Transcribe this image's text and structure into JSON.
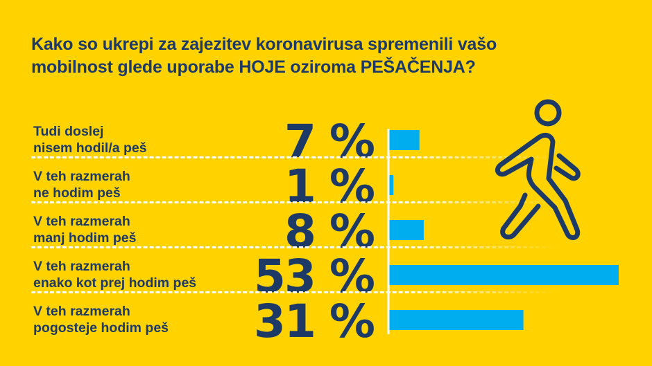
{
  "title_line1": "Kako so ukrepi za zajezitev koronavirusa spremenili vašo",
  "title_line2": "mobilnost glede uporabe HOJE oziroma PEŠAČENJA?",
  "colors": {
    "background": "#FFD200",
    "text": "#1D3A66",
    "bar": "#00AEEF",
    "divider": "#FFFFFF"
  },
  "icon": "walking-person-icon",
  "chart_data": {
    "type": "bar",
    "orientation": "horizontal",
    "title": "Kako so ukrepi za zajezitev koronavirusa spremenili vašo mobilnost glede uporabe HOJE oziroma PEŠAČENJA?",
    "categories": [
      [
        "Tudi doslej",
        "nisem hodil/a peš"
      ],
      [
        "V teh razmerah",
        "ne hodim peš"
      ],
      [
        "V teh razmerah",
        "manj hodim peš"
      ],
      [
        "V teh razmerah",
        "enako kot prej hodim peš"
      ],
      [
        "V teh razmerah",
        "pogosteje hodim peš"
      ]
    ],
    "values": [
      7,
      1,
      8,
      53,
      31
    ],
    "data_labels": [
      "7 %",
      "1 %",
      "8 %",
      "53 %",
      "31 %"
    ],
    "unit": "%",
    "xlim": [
      0,
      53
    ],
    "grid": false
  }
}
